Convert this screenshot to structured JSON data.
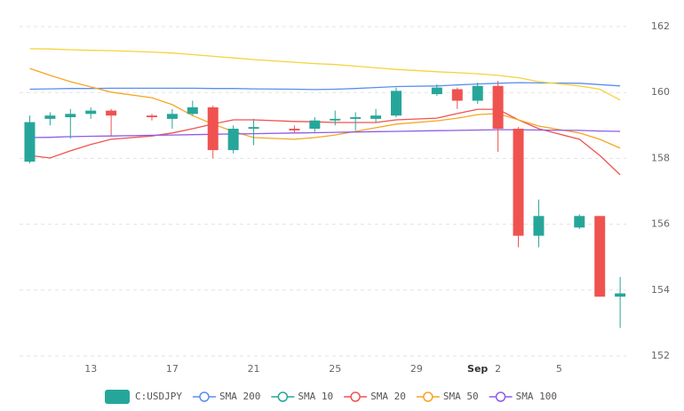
{
  "chart_data": {
    "type": "candlestick",
    "x": [
      10,
      11,
      12,
      13,
      14,
      16,
      17,
      18,
      19,
      20,
      21,
      23,
      24,
      25,
      26,
      27,
      28,
      30,
      31,
      32,
      33,
      34,
      35,
      37,
      38,
      39
    ],
    "xlim": [
      9.5,
      39.3
    ],
    "xticks": [
      13,
      17,
      21,
      25,
      29,
      {
        "value": 32,
        "label": "Sep"
      },
      {
        "value": 33,
        "label": "2"
      },
      {
        "value": 36,
        "label": "5"
      }
    ],
    "ylim": [
      152,
      162
    ],
    "yticks": [
      152,
      154,
      156,
      158,
      160,
      162
    ],
    "grid": true,
    "legend": "bottom",
    "candles": {
      "name": "C:USDJPY",
      "up_color": "#26a69a",
      "down_color": "#ef5350",
      "open": [
        157.9,
        159.2,
        159.25,
        159.35,
        159.45,
        159.3,
        159.2,
        159.35,
        159.55,
        158.25,
        158.9,
        158.9,
        158.9,
        159.15,
        159.2,
        159.2,
        159.3,
        159.95,
        160.1,
        159.75,
        160.2,
        158.9,
        155.65,
        155.9,
        156.25,
        153.8
      ],
      "high": [
        159.3,
        159.4,
        159.5,
        159.55,
        159.5,
        159.35,
        159.5,
        159.75,
        159.6,
        159.0,
        159.2,
        159.0,
        159.25,
        159.45,
        159.4,
        159.5,
        160.15,
        160.25,
        160.15,
        160.3,
        160.35,
        158.95,
        156.75,
        156.3,
        156.25,
        154.4
      ],
      "low": [
        157.85,
        159.0,
        158.6,
        159.2,
        158.7,
        159.15,
        158.9,
        159.3,
        158.0,
        158.15,
        158.4,
        158.75,
        158.8,
        159.0,
        158.85,
        159.1,
        159.25,
        159.9,
        159.5,
        159.65,
        158.2,
        155.3,
        155.3,
        155.85,
        153.8,
        152.85
      ],
      "close": [
        159.1,
        159.3,
        159.35,
        159.45,
        159.3,
        159.25,
        159.35,
        159.55,
        158.25,
        158.9,
        158.95,
        158.85,
        159.15,
        159.2,
        159.25,
        159.3,
        160.05,
        160.15,
        159.75,
        160.2,
        158.9,
        155.65,
        156.25,
        156.25,
        153.8,
        153.9
      ]
    },
    "series": [
      {
        "name": "SMA 200",
        "color": "#5b8def",
        "values": [
          160.1,
          160.11,
          160.12,
          160.12,
          160.13,
          160.13,
          160.13,
          160.13,
          160.12,
          160.12,
          160.11,
          160.1,
          160.09,
          160.1,
          160.12,
          160.15,
          160.18,
          160.2,
          160.23,
          160.26,
          160.28,
          160.3,
          160.29,
          160.28,
          160.24,
          160.2
        ]
      },
      {
        "name": "SMA 10",
        "color": "#26a69a",
        "values": [
          null,
          null,
          null,
          null,
          null,
          null,
          null,
          null,
          null,
          null,
          null,
          null,
          null,
          null,
          null,
          null,
          null,
          null,
          null,
          null,
          null,
          null,
          null,
          null,
          null,
          null
        ]
      },
      {
        "name": "SMA 20",
        "color": "#ef5350",
        "values": [
          158.09,
          158.01,
          158.23,
          158.42,
          158.58,
          158.68,
          158.77,
          158.9,
          159.04,
          159.17,
          159.17,
          159.12,
          159.11,
          159.09,
          159.09,
          159.09,
          159.17,
          159.22,
          159.36,
          159.49,
          159.49,
          159.17,
          158.9,
          158.58,
          158.09,
          157.5
        ]
      },
      {
        "name": "SMA 50",
        "color": "#f5a623",
        "values": [
          160.73,
          160.52,
          160.33,
          160.17,
          160.01,
          159.84,
          159.63,
          159.3,
          159.04,
          158.82,
          158.63,
          158.58,
          158.63,
          158.71,
          158.82,
          158.93,
          159.04,
          159.14,
          159.22,
          159.33,
          159.36,
          159.17,
          158.98,
          158.77,
          158.58,
          158.31
        ]
      },
      {
        "name": "SMA 100",
        "color": "#8e5ce6",
        "values": [
          158.63,
          158.64,
          158.66,
          158.67,
          158.68,
          158.7,
          158.71,
          158.72,
          158.73,
          158.74,
          158.75,
          158.77,
          158.78,
          158.79,
          158.8,
          158.81,
          158.82,
          158.84,
          158.85,
          158.86,
          158.87,
          158.87,
          158.86,
          158.85,
          158.83,
          158.82
        ]
      },
      {
        "color": "#f5d33a",
        "values": [
          161.33,
          161.32,
          161.3,
          161.28,
          161.27,
          161.23,
          161.2,
          161.15,
          161.1,
          161.05,
          161.0,
          160.92,
          160.88,
          160.85,
          160.8,
          160.75,
          160.7,
          160.63,
          160.6,
          160.57,
          160.52,
          160.45,
          160.33,
          160.2,
          160.1,
          159.77
        ]
      }
    ]
  }
}
